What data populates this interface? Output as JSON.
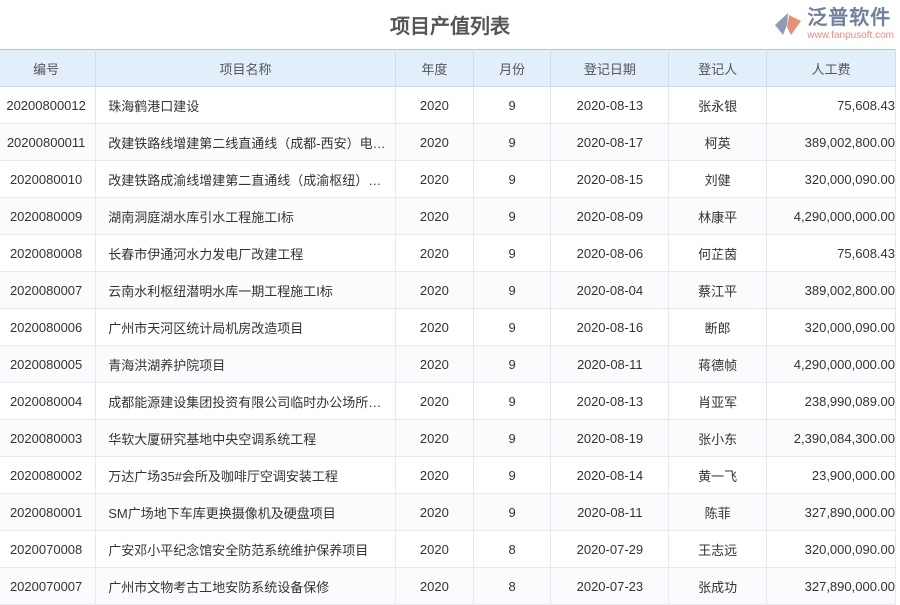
{
  "title": "项目产值列表",
  "columns": [
    "编号",
    "项目名称",
    "年度",
    "月份",
    "登记日期",
    "登记人",
    "人工费"
  ],
  "rows": [
    [
      "20200800012",
      "珠海鹤港口建设",
      "2020",
      "9",
      "2020-08-13",
      "张永银",
      "75,608.43"
    ],
    [
      "20200800011",
      "改建铁路线增建第二线直通线（成都-西安）电…",
      "2020",
      "9",
      "2020-08-17",
      "柯英",
      "389,002,800.00"
    ],
    [
      "2020080010",
      "改建铁路成渝线增建第二直通线（成渝枢纽）…",
      "2020",
      "9",
      "2020-08-15",
      "刘健",
      "320,000,090.00"
    ],
    [
      "2020080009",
      "湖南洞庭湖水库引水工程施工I标",
      "2020",
      "9",
      "2020-08-09",
      "林康平",
      "4,290,000,000.00"
    ],
    [
      "2020080008",
      "长春市伊通河水力发电厂改建工程",
      "2020",
      "9",
      "2020-08-06",
      "何芷茵",
      "75,608.43"
    ],
    [
      "2020080007",
      "云南水利枢纽潜明水库一期工程施工I标",
      "2020",
      "9",
      "2020-08-04",
      "蔡江平",
      "389,002,800.00"
    ],
    [
      "2020080006",
      "广州市天河区统计局机房改造项目",
      "2020",
      "9",
      "2020-08-16",
      "断郎",
      "320,000,090.00"
    ],
    [
      "2020080005",
      "青海洪湖养护院项目",
      "2020",
      "9",
      "2020-08-11",
      "蒋德帧",
      "4,290,000,000.00"
    ],
    [
      "2020080004",
      "成都能源建设集团投资有限公司临时办公场所…",
      "2020",
      "9",
      "2020-08-13",
      "肖亚军",
      "238,990,089.00"
    ],
    [
      "2020080003",
      "华软大厦研究基地中央空调系统工程",
      "2020",
      "9",
      "2020-08-19",
      "张小东",
      "2,390,084,300.00"
    ],
    [
      "2020080002",
      "万达广场35#会所及咖啡厅空调安装工程",
      "2020",
      "9",
      "2020-08-14",
      "黄一飞",
      "23,900,000.00"
    ],
    [
      "2020080001",
      "SM广场地下车库更换摄像机及硬盘项目",
      "2020",
      "9",
      "2020-08-11",
      "陈菲",
      "327,890,000.00"
    ],
    [
      "2020070008",
      "广安邓小平纪念馆安全防范系统维护保养项目",
      "2020",
      "8",
      "2020-07-29",
      "王志远",
      "320,000,090.00"
    ],
    [
      "2020070007",
      "广州市文物考古工地安防系统设备保修",
      "2020",
      "8",
      "2020-07-23",
      "张成功",
      "327,890,000.00"
    ]
  ],
  "watermark": {
    "text": "泛普软件",
    "url": "www.fanpusoft.com"
  },
  "colors": {
    "header_bg": "#e2effb",
    "link": "#2a6fb5"
  }
}
